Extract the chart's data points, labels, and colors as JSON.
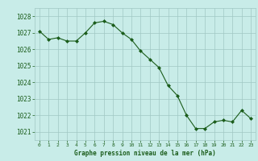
{
  "x": [
    0,
    1,
    2,
    3,
    4,
    5,
    6,
    7,
    8,
    9,
    10,
    11,
    12,
    13,
    14,
    15,
    16,
    17,
    18,
    19,
    20,
    21,
    22,
    23
  ],
  "y": [
    1027.1,
    1026.6,
    1026.7,
    1026.5,
    1026.5,
    1027.0,
    1027.6,
    1027.7,
    1027.5,
    1027.0,
    1026.6,
    1025.9,
    1025.4,
    1024.9,
    1023.8,
    1023.2,
    1022.0,
    1021.2,
    1021.2,
    1021.6,
    1021.7,
    1021.6,
    1022.3,
    1021.8
  ],
  "line_color": "#1a5c1a",
  "marker_color": "#1a5c1a",
  "bg_color": "#c8ece8",
  "grid_color": "#a0c8c4",
  "xlabel": "Graphe pression niveau de la mer (hPa)",
  "xlabel_color": "#1a5c1a",
  "tick_color": "#1a5c1a",
  "ylim": [
    1020.5,
    1028.5
  ],
  "yticks": [
    1021,
    1022,
    1023,
    1024,
    1025,
    1026,
    1027,
    1028
  ],
  "xticks": [
    0,
    1,
    2,
    3,
    4,
    5,
    6,
    7,
    8,
    9,
    10,
    11,
    12,
    13,
    14,
    15,
    16,
    17,
    18,
    19,
    20,
    21,
    22,
    23
  ],
  "figsize": [
    3.2,
    2.0
  ],
  "dpi": 100
}
